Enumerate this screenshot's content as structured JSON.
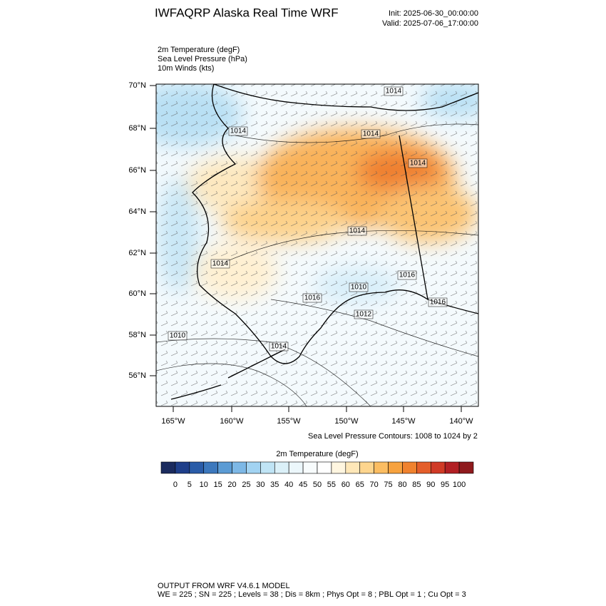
{
  "header": {
    "title": "IWFAQRP Alaska Real Time WRF",
    "init": "Init: 2025-06-30_00:00:00",
    "valid": "Valid: 2025-07-06_17:00:00"
  },
  "fields": [
    "2m Temperature   (degF)",
    "Sea Level Pressure   (hPa)",
    "10m Winds   (kts)"
  ],
  "map": {
    "lat_labels": [
      "70°N",
      "68°N",
      "66°N",
      "64°N",
      "62°N",
      "60°N",
      "58°N",
      "56°N"
    ],
    "lon_labels": [
      "165°W",
      "160°W",
      "155°W",
      "150°W",
      "145°W",
      "140°W"
    ],
    "contour_labels": [
      "1014",
      "1014",
      "1014",
      "1014",
      "1014",
      "1014",
      "1016",
      "1016",
      "1010",
      "1012",
      "1016",
      "1010",
      "1014"
    ],
    "contour_note": "Sea Level Pressure Contours: 1008 to 1024 by 2"
  },
  "colorbar": {
    "title": "2m Temperature  (degF)",
    "colors": [
      "#1b2b5e",
      "#1f3f8a",
      "#2a5ca8",
      "#3c78bd",
      "#5b9bd4",
      "#7db8e6",
      "#a2d3f2",
      "#c0e4f5",
      "#dbf0f8",
      "#ecf7fb",
      "#f8fcfd",
      "#ffffff",
      "#fff6e0",
      "#fee7b8",
      "#fdd58e",
      "#fbbd62",
      "#f7a23e",
      "#f0822e",
      "#e45e2a",
      "#d03a26",
      "#b21f24",
      "#8f1a1d"
    ],
    "ticks": [
      0,
      5,
      10,
      15,
      20,
      25,
      30,
      35,
      40,
      45,
      50,
      55,
      60,
      65,
      70,
      75,
      80,
      85,
      90,
      95,
      100
    ]
  },
  "footer": [
    "OUTPUT FROM WRF V4.6.1 MODEL",
    "WE = 225 ; SN = 225 ; Levels = 38 ; Dis = 8km ; Phys Opt = 8 ; PBL Opt = 1 ; Cu Opt = 3"
  ]
}
